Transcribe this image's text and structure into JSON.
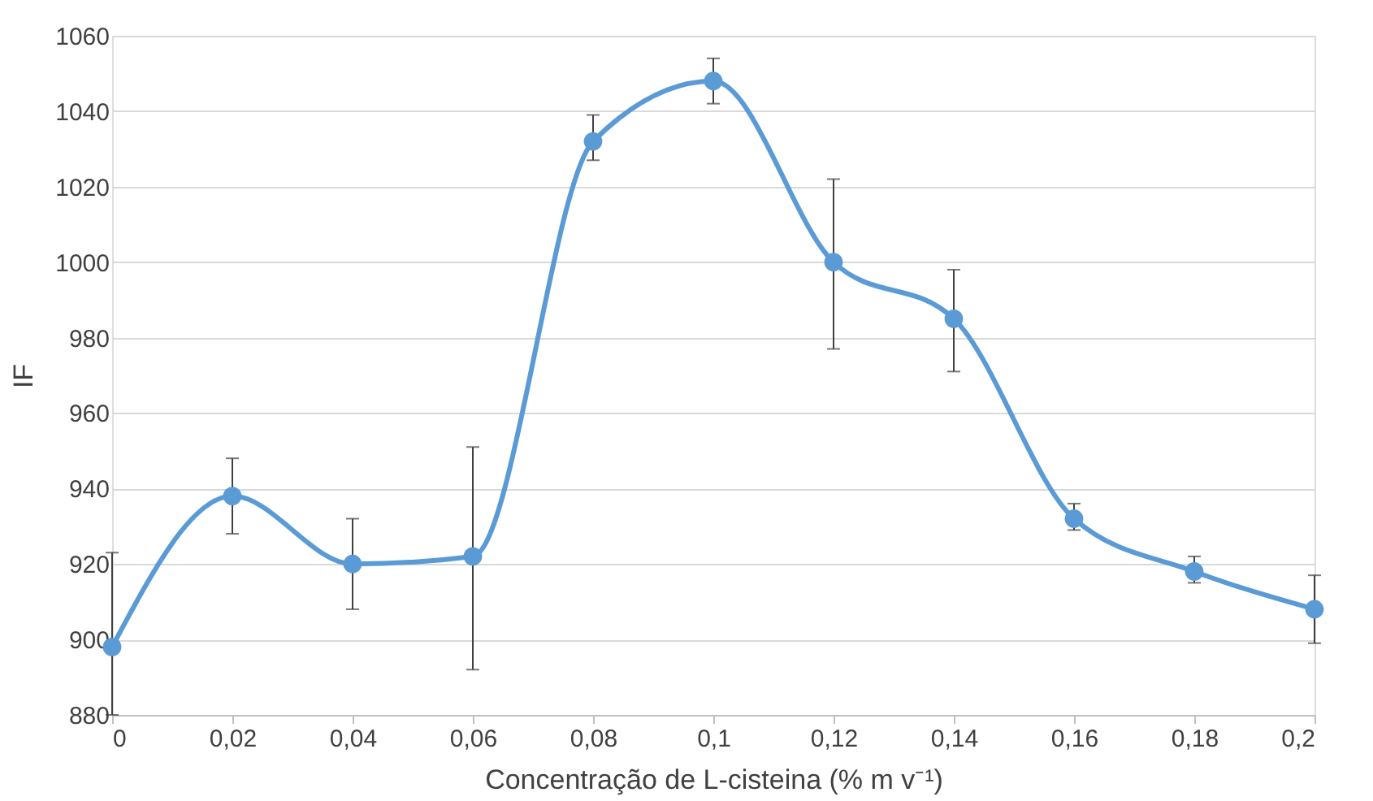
{
  "chart_data": {
    "type": "line",
    "xlabel": "Concentração de L-cisteina (% m v⁻¹)",
    "ylabel": "IF",
    "x": [
      0,
      0.02,
      0.04,
      0.06,
      0.08,
      0.1,
      0.12,
      0.14,
      0.16,
      0.18,
      0.2
    ],
    "series": [
      {
        "color": "#5b9bd5",
        "values": [
          898,
          938,
          920,
          922,
          1032,
          1048,
          1000,
          985,
          932,
          918,
          908
        ],
        "errors": [
          [
            880,
            923
          ],
          [
            928,
            948
          ],
          [
            908,
            932
          ],
          [
            892,
            951
          ],
          [
            1027,
            1039
          ],
          [
            1042,
            1054
          ],
          [
            977,
            1022
          ],
          [
            971,
            998
          ],
          [
            929,
            936
          ],
          [
            915,
            922
          ],
          [
            899,
            917
          ]
        ]
      }
    ],
    "xlim": [
      0,
      0.2
    ],
    "xticks": [
      0,
      {
        "value": 0.02,
        "label": "0,02"
      },
      {
        "value": 0.04,
        "label": "0,04"
      },
      {
        "value": 0.06,
        "label": "0,06"
      },
      {
        "value": 0.08,
        "label": "0,08"
      },
      {
        "value": 0.1,
        "label": "0,1"
      },
      {
        "value": 0.12,
        "label": "0,12"
      },
      {
        "value": 0.14,
        "label": "0,14"
      },
      {
        "value": 0.16,
        "label": "0,16"
      },
      {
        "value": 0.18,
        "label": "0,18"
      },
      {
        "value": 0.2,
        "label": "0,2"
      }
    ],
    "ylim": [
      880,
      1060
    ],
    "yticks": [
      880,
      900,
      920,
      940,
      960,
      980,
      1000,
      1020,
      1040,
      1060
    ],
    "grid": "y",
    "marker": "circle",
    "line_style": "solid"
  }
}
